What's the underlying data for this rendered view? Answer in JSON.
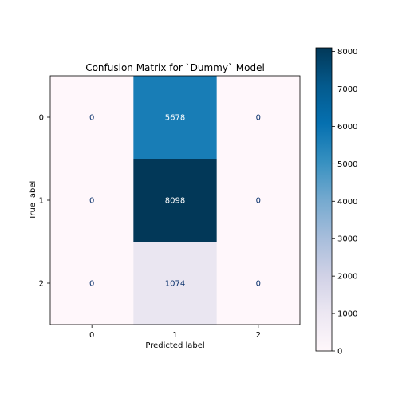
{
  "chart_data": {
    "type": "heatmap",
    "title": "Confusion Matrix for `Dummy` Model",
    "xlabel": "Predicted label",
    "ylabel": "True label",
    "x_ticks": [
      "0",
      "1",
      "2"
    ],
    "y_ticks": [
      "0",
      "1",
      "2"
    ],
    "matrix": [
      [
        0,
        5678,
        0
      ],
      [
        0,
        8098,
        0
      ],
      [
        0,
        1074,
        0
      ]
    ],
    "colormap": "PuBu",
    "colorbar": {
      "ticks": [
        0,
        1000,
        2000,
        3000,
        4000,
        5000,
        6000,
        7000,
        8000
      ],
      "range": [
        0,
        8098
      ]
    },
    "grid": false
  }
}
